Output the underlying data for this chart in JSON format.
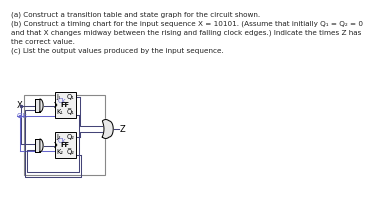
{
  "title_lines": [
    "(a) Construct a transition table and state graph for the circuit shown.",
    "(b) Construct a timing chart for the input sequence X = 10101. (Assume that initially Q₁ = Q₂ = 0",
    "and that X changes midway between the rising and falling clock edges.) Indicate the times Z has",
    "the correct value.",
    "(c) List the output values produced by the input sequence."
  ],
  "bg_color": "#ffffff",
  "text_color": "#222222",
  "x_label": "X",
  "clk_label": "Clk",
  "z_label": "Z",
  "ff1_labels": [
    "J₁",
    "Q₁",
    "Ck",
    "FF",
    "K₁",
    "Q̅₁"
  ],
  "ff2_labels": [
    "J₂",
    "Q₂",
    "Ck",
    "FF",
    "K₂",
    "Q̅₂"
  ],
  "clk_color": "#6666cc",
  "wire_color": "#444477",
  "gate_fill": "#e8e8e8",
  "ff_fill": "#f0f0f0",
  "box_edge": "#333333"
}
